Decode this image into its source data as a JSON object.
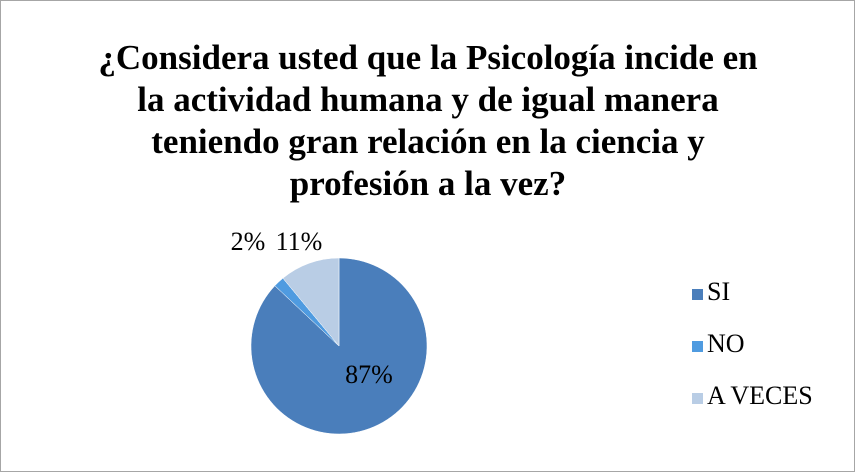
{
  "chart_data": {
    "type": "pie",
    "title": "¿Considera usted que la Psicología incide en la actividad humana y  de igual manera teniendo gran relación en la ciencia y profesión a la vez?",
    "categories": [
      "SI",
      "NO",
      "A VECES"
    ],
    "values": [
      87,
      2,
      11
    ],
    "value_labels": [
      "87%",
      "2%",
      "11%"
    ],
    "colors": [
      "#4a7ebb",
      "#4f9be0",
      "#b9cde5"
    ],
    "legend": "right"
  }
}
